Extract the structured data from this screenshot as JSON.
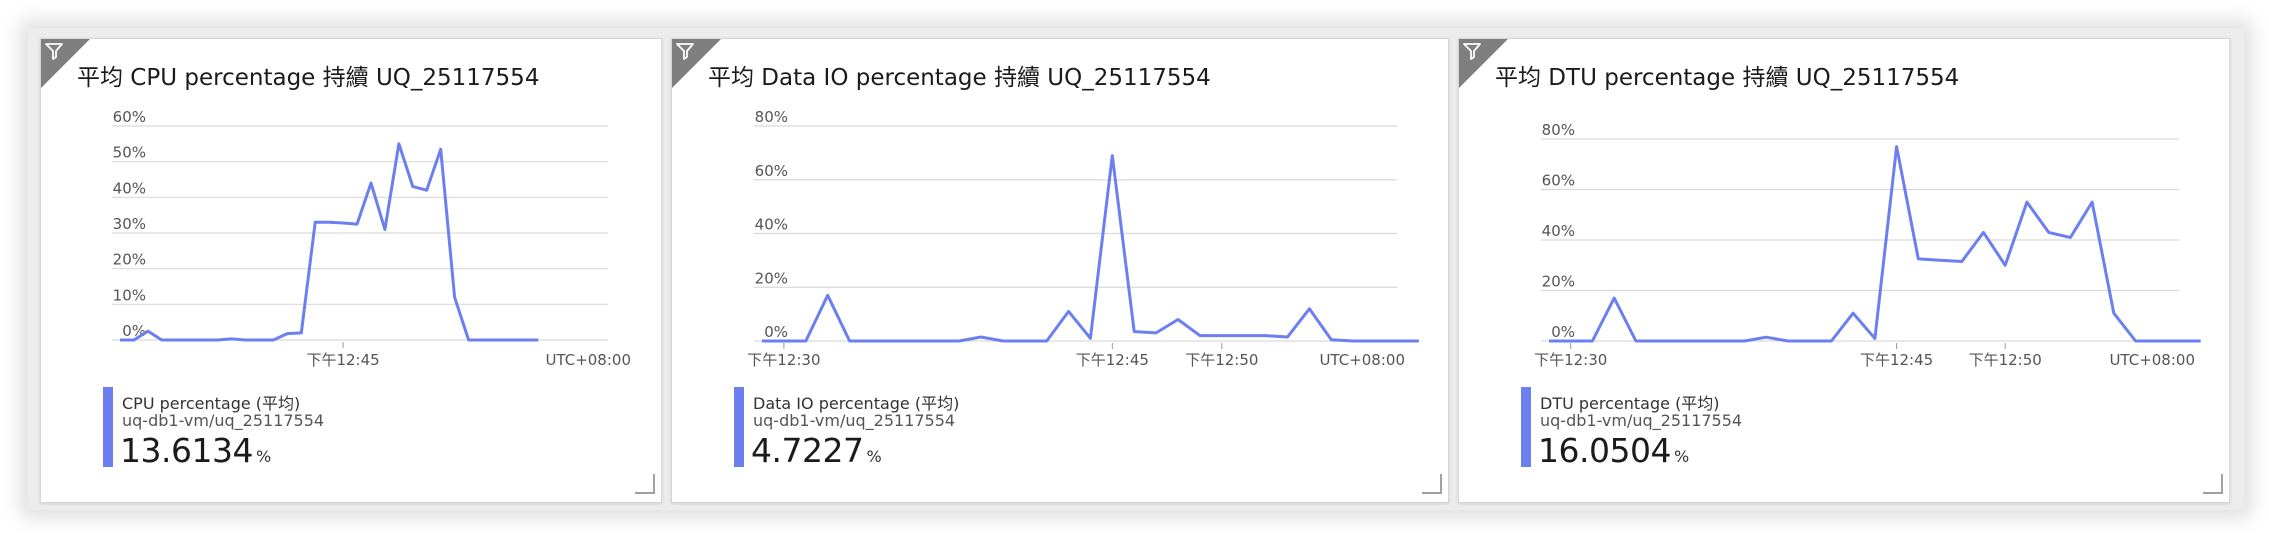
{
  "tiles": [
    {
      "title": "平均 CPU percentage 持續 UQ_25117554",
      "metric": "CPU percentage (平均)",
      "resource": "uq-db1-vm/uq_25117554",
      "value": "13.6134",
      "unit": "%",
      "timezone": "UTC+08:00",
      "icon": "filter-icon",
      "chart_data": {
        "type": "line",
        "y_ticks": [
          "0%",
          "10%",
          "20%",
          "30%",
          "40%",
          "50%",
          "60%"
        ],
        "ylim": [
          0,
          60
        ],
        "x_tick_labels": [
          "下午12:45"
        ],
        "x_tick_positions": [
          16
        ],
        "x_count": 36,
        "series": [
          {
            "color": "#6b7ff0",
            "values": [
              0,
              0,
              2.5,
              0,
              0,
              0,
              0,
              0,
              0.3,
              0,
              0,
              0,
              1.8,
              2,
              33,
              33,
              32.8,
              32.5,
              44,
              31,
              55,
              43,
              42,
              53.5,
              12,
              0,
              0,
              0,
              0,
              0,
              0
            ]
          }
        ]
      }
    },
    {
      "title": "平均 Data IO percentage 持續 UQ_25117554",
      "metric": "Data IO percentage (平均)",
      "resource": "uq-db1-vm/uq_25117554",
      "value": "4.7227",
      "unit": "%",
      "timezone": "UTC+08:00",
      "icon": "filter-icon",
      "chart_data": {
        "type": "line",
        "y_ticks": [
          "0%",
          "20%",
          "40%",
          "60%",
          "80%"
        ],
        "ylim": [
          0,
          80
        ],
        "x_tick_labels": [
          "下午12:30",
          "下午12:45",
          "下午12:50"
        ],
        "x_tick_positions": [
          1,
          16,
          21
        ],
        "x_count": 30,
        "series": [
          {
            "color": "#6b7ff0",
            "values": [
              0,
              0,
              0,
              17,
              0,
              0,
              0,
              0,
              0,
              0,
              1.5,
              0,
              0,
              0,
              11,
              1,
              69,
              3.5,
              3,
              8,
              2,
              2,
              2,
              2,
              1.5,
              12,
              0.5,
              0,
              0,
              0,
              0
            ]
          }
        ]
      }
    },
    {
      "title": "平均 DTU percentage 持續 UQ_25117554",
      "metric": "DTU percentage (平均)",
      "resource": "uq-db1-vm/uq_25117554",
      "value": "16.0504",
      "unit": "%",
      "timezone": "UTC+08:00",
      "icon": "filter-icon",
      "chart_data": {
        "type": "line",
        "y_ticks": [
          "0%",
          "20%",
          "40%",
          "60%",
          "80%"
        ],
        "ylim": [
          0,
          80
        ],
        "x_tick_labels": [
          "下午12:30",
          "下午12:45",
          "下午12:50"
        ],
        "x_tick_positions": [
          1,
          16,
          21
        ],
        "x_count": 30,
        "series": [
          {
            "color": "#6b7ff0",
            "values": [
              0,
              0,
              0,
              17,
              0,
              0,
              0,
              0,
              0,
              0,
              1.5,
              0,
              0,
              0,
              11,
              1,
              77,
              32.5,
              32,
              31.5,
              43,
              30,
              55,
              43,
              41,
              55,
              11,
              0,
              0,
              0,
              0
            ]
          }
        ]
      }
    }
  ]
}
